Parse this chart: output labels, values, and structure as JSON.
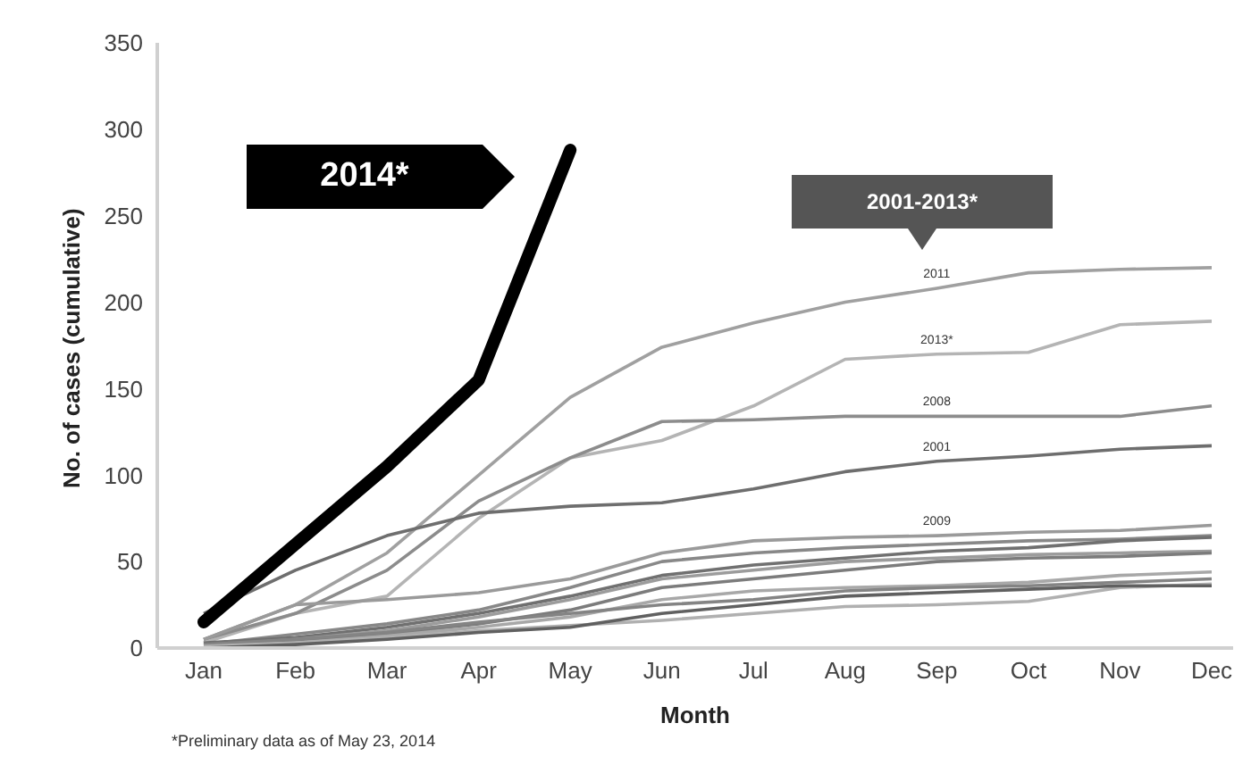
{
  "chart_data": {
    "type": "line",
    "xlabel": "Month",
    "ylabel": "No. of cases (cumulative)",
    "categories": [
      "Jan",
      "Feb",
      "Mar",
      "Apr",
      "May",
      "Jun",
      "Jul",
      "Aug",
      "Sep",
      "Oct",
      "Nov",
      "Dec"
    ],
    "ylim": [
      0,
      350
    ],
    "yticks": [
      0,
      50,
      100,
      150,
      200,
      250,
      300,
      350
    ],
    "grid": false,
    "legend": false,
    "marker": "none",
    "annotations": [
      "2001-2013*",
      "*Preliminary data as of May 23, 2014"
    ],
    "series": [
      {
        "name": "2014*",
        "color": "#000000",
        "values": [
          15,
          60,
          105,
          155,
          288,
          null,
          null,
          null,
          null,
          null,
          null,
          null
        ]
      },
      {
        "name": "2011",
        "color": "#a0a0a0",
        "values": [
          5,
          25,
          55,
          100,
          145,
          174,
          188,
          200,
          208,
          217,
          219,
          220
        ]
      },
      {
        "name": "2013*",
        "color": "#b4b4b4",
        "values": [
          3,
          20,
          30,
          75,
          110,
          120,
          140,
          167,
          170,
          171,
          187,
          189
        ]
      },
      {
        "name": "2008",
        "color": "#8c8c8c",
        "values": [
          5,
          20,
          45,
          85,
          110,
          131,
          132,
          134,
          134,
          134,
          134,
          140
        ]
      },
      {
        "name": "2001",
        "color": "#6e6e6e",
        "values": [
          20,
          45,
          65,
          78,
          82,
          84,
          92,
          102,
          108,
          111,
          115,
          117
        ]
      },
      {
        "name": "2009",
        "color": "#9a9a9a",
        "values": [
          5,
          25,
          28,
          32,
          40,
          55,
          62,
          64,
          65,
          67,
          68,
          71
        ]
      },
      {
        "color": "#888888",
        "values": [
          2,
          8,
          14,
          22,
          35,
          50,
          55,
          58,
          60,
          62,
          63,
          65
        ]
      },
      {
        "color": "#707070",
        "values": [
          3,
          6,
          12,
          20,
          30,
          42,
          48,
          52,
          56,
          58,
          62,
          64
        ]
      },
      {
        "color": "#9c9c9c",
        "values": [
          1,
          5,
          10,
          18,
          28,
          40,
          45,
          50,
          52,
          54,
          55,
          56
        ]
      },
      {
        "color": "#7c7c7c",
        "values": [
          2,
          4,
          8,
          14,
          22,
          35,
          40,
          45,
          50,
          52,
          53,
          55
        ]
      },
      {
        "color": "#a8a8a8",
        "values": [
          1,
          3,
          7,
          12,
          18,
          28,
          33,
          35,
          36,
          38,
          42,
          44
        ]
      },
      {
        "color": "#848484",
        "values": [
          2,
          5,
          9,
          15,
          20,
          25,
          28,
          33,
          35,
          36,
          38,
          40
        ]
      },
      {
        "color": "#b0b0b0",
        "values": [
          1,
          3,
          6,
          10,
          13,
          16,
          20,
          24,
          25,
          27,
          35,
          37
        ]
      },
      {
        "color": "#606060",
        "values": [
          0,
          2,
          5,
          9,
          12,
          20,
          25,
          30,
          32,
          34,
          36,
          36
        ]
      }
    ]
  }
}
